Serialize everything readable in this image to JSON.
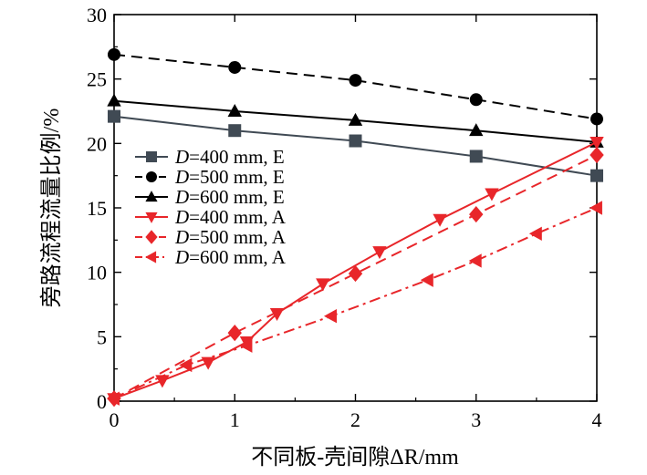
{
  "chart_data": {
    "type": "line",
    "title": "",
    "xlabel": "不同板-壳间隙ΔR/mm",
    "ylabel": "旁路流程流量比例/%",
    "xlim": [
      0,
      4
    ],
    "ylim": [
      0,
      30
    ],
    "xticks": [
      0,
      1,
      2,
      3,
      4
    ],
    "yticks": [
      0,
      5,
      10,
      15,
      20,
      25,
      30
    ],
    "grid": false,
    "legend_position": "middle-left",
    "series": [
      {
        "name": "D=400 mm, E",
        "label_italic": "D",
        "label_rest": "=400 mm, E",
        "color": "#404a54",
        "marker": "square",
        "linestyle": "solid",
        "x": [
          0,
          1,
          2,
          3,
          4
        ],
        "y": [
          22.1,
          21.0,
          20.2,
          19.0,
          17.5
        ]
      },
      {
        "name": "D=500 mm, E",
        "label_italic": "D",
        "label_rest": "=500 mm, E",
        "color": "#000000",
        "marker": "circle",
        "linestyle": "dashed",
        "x": [
          0,
          1,
          2,
          3,
          4
        ],
        "y": [
          26.9,
          25.9,
          24.9,
          23.4,
          21.9
        ]
      },
      {
        "name": "D=600 mm, E",
        "label_italic": "D",
        "label_rest": "=600 mm, E",
        "color": "#000000",
        "marker": "triangle-up",
        "linestyle": "solid",
        "x": [
          0,
          1,
          2,
          3,
          4
        ],
        "y": [
          23.3,
          22.5,
          21.8,
          21.0,
          20.1
        ]
      },
      {
        "name": "D=400 mm, A",
        "label_italic": "D",
        "label_rest": "=400 mm, A",
        "color": "#e8262a",
        "marker": "triangle-down",
        "linestyle": "solid",
        "x": [
          0,
          0.4,
          0.78,
          1.1,
          1.35,
          1.73,
          2.2,
          2.7,
          3.13,
          4
        ],
        "y": [
          0.2,
          1.6,
          3.0,
          4.6,
          6.8,
          9.1,
          11.6,
          14.1,
          16.1,
          20.1
        ]
      },
      {
        "name": "D=500 mm, A",
        "label_italic": "D",
        "label_rest": "=500 mm, A",
        "color": "#e8262a",
        "marker": "diamond",
        "linestyle": "dashed",
        "x": [
          0,
          1,
          2,
          3,
          4
        ],
        "y": [
          0.2,
          5.3,
          9.9,
          14.5,
          19.1
        ]
      },
      {
        "name": "D=600 mm, A",
        "label_italic": "D",
        "label_rest": "=600 mm, A",
        "color": "#e8262a",
        "marker": "triangle-left",
        "linestyle": "dashdot",
        "x": [
          0,
          0.6,
          1.1,
          1.8,
          2.6,
          3.0,
          3.5,
          4
        ],
        "y": [
          0.2,
          2.8,
          4.3,
          6.6,
          9.4,
          10.9,
          13.0,
          15.0
        ]
      }
    ]
  }
}
